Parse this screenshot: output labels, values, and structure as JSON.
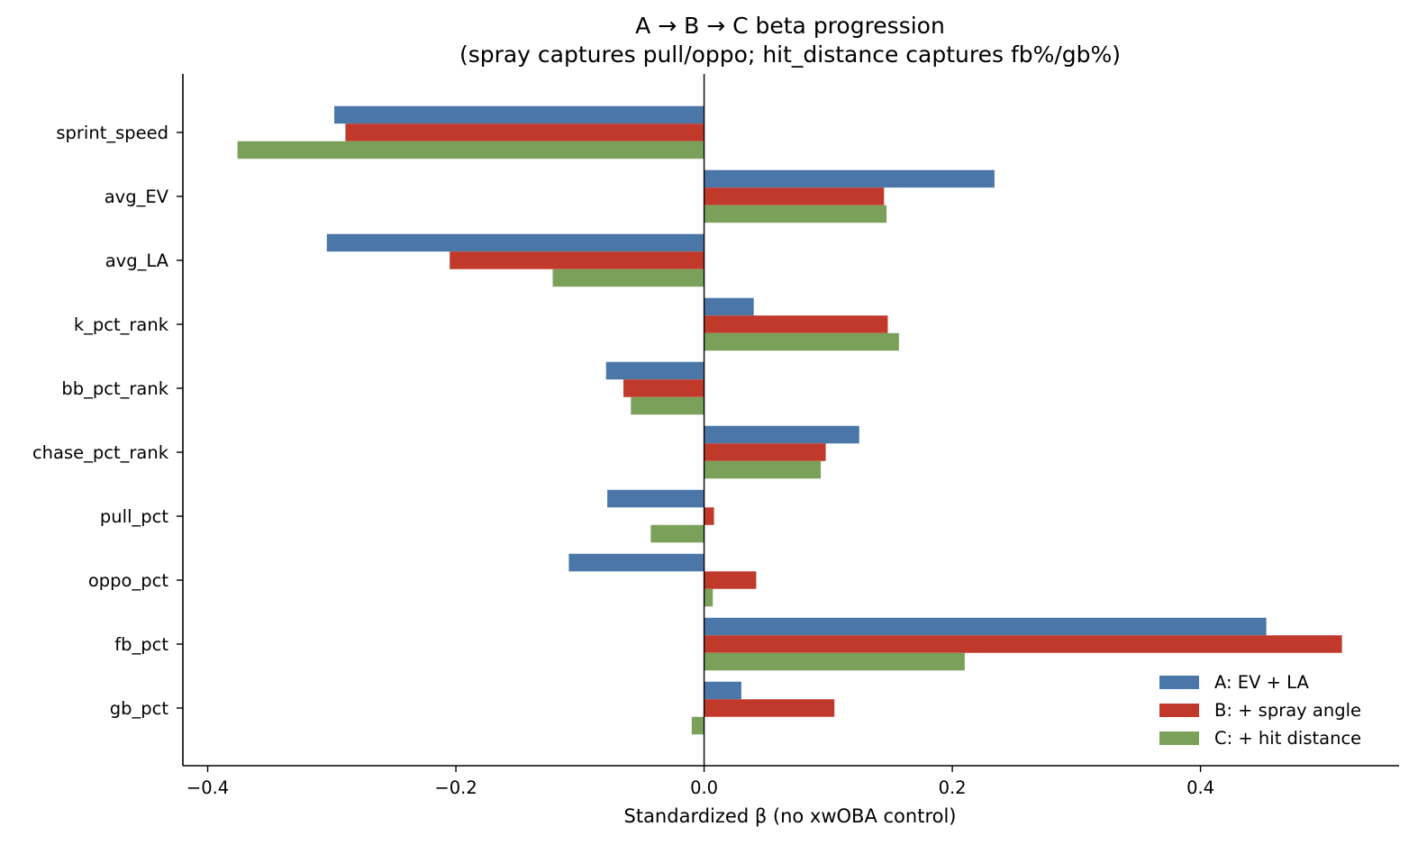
{
  "chart_data": {
    "type": "bar",
    "orientation": "horizontal",
    "title": "A → B → C beta progression",
    "subtitle": "(spray captures pull/oppo; hit_distance captures fb%/gb%)",
    "xlabel": "Standardized β (no xwOBA control)",
    "ylabel": "",
    "xlim": [
      -0.42,
      0.56
    ],
    "xticks": [
      -0.4,
      -0.2,
      0.0,
      0.2,
      0.4
    ],
    "xtick_labels": [
      "−0.4",
      "−0.2",
      "0.0",
      "0.2",
      "0.4"
    ],
    "grid": false,
    "legend_position": "lower-right",
    "zero_line": true,
    "categories": [
      "sprint_speed",
      "avg_EV",
      "avg_LA",
      "k_pct_rank",
      "bb_pct_rank",
      "chase_pct_rank",
      "pull_pct",
      "oppo_pct",
      "fb_pct",
      "gb_pct"
    ],
    "series": [
      {
        "name": "A: EV + LA",
        "color": "#4a76a8",
        "values": [
          -0.298,
          0.234,
          -0.304,
          0.04,
          -0.079,
          0.125,
          -0.078,
          -0.109,
          0.453,
          0.03
        ]
      },
      {
        "name": "B: + spray angle",
        "color": "#c0392b",
        "values": [
          -0.289,
          0.145,
          -0.205,
          0.148,
          -0.065,
          0.098,
          0.008,
          0.042,
          0.514,
          0.105
        ]
      },
      {
        "name": "C: + hit distance",
        "color": "#7aa05a",
        "values": [
          -0.376,
          0.147,
          -0.122,
          0.157,
          -0.059,
          0.094,
          -0.043,
          0.007,
          0.21,
          -0.01
        ]
      }
    ]
  }
}
